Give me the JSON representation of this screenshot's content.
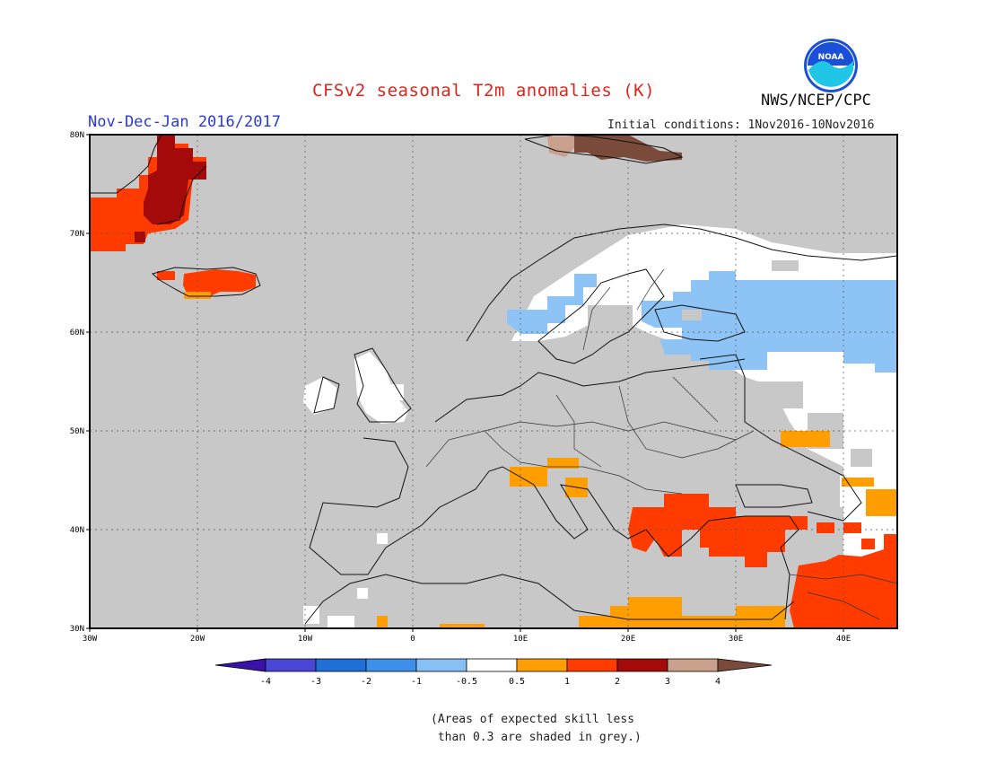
{
  "header": {
    "title": "CFSv2 seasonal T2m anomalies (K)",
    "organization": "NWS/NCEP/CPC",
    "logo_text": "NOAA",
    "period": "Nov-Dec-Jan 2016/2017",
    "initial_conditions": "Initial conditions: 1Nov2016-10Nov2016"
  },
  "map": {
    "lat_labels": [
      "80N",
      "70N",
      "60N",
      "50N",
      "40N",
      "30N"
    ],
    "lon_labels": [
      "30W",
      "20W",
      "10W",
      "0",
      "10E",
      "20E",
      "30E",
      "40E"
    ],
    "lat_range": [
      30,
      80
    ],
    "lon_range": [
      -30,
      45
    ],
    "colors": {
      "no_skill": "#c8c8c8",
      "near_zero": "#ffffff",
      "neg_0_5_1": "#8ec4f5",
      "pos_0_5_1": "#ff9e00",
      "pos_1_2": "#ff3b00",
      "pos_2_3": "#a50a0a",
      "pos_3_4": "#c8a08c"
    }
  },
  "colorbar": {
    "tick_labels": [
      "-4",
      "-3",
      "-2",
      "-1",
      "-0.5",
      "0.5",
      "1",
      "2",
      "3",
      "4"
    ],
    "colors": [
      "#3a12a8",
      "#4a46d6",
      "#1f6fd6",
      "#3d8fe9",
      "#86c0f5",
      "#ffffff",
      "#ff9e00",
      "#ff3b00",
      "#a50a0a",
      "#c8a08c",
      "#7a4a3a"
    ]
  },
  "footnote": {
    "line1": "(Areas of expected skill less",
    "line2": " than 0.3 are shaded in grey.)"
  }
}
